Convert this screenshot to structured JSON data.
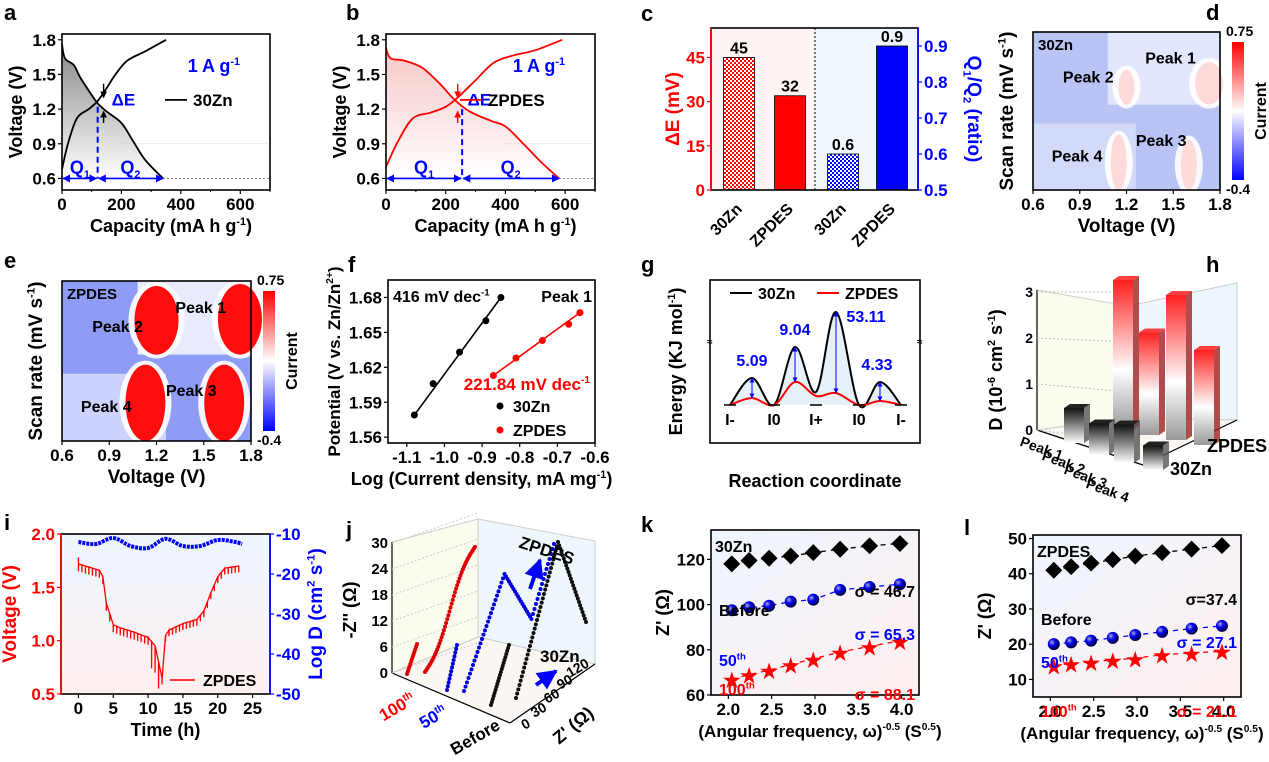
{
  "colors": {
    "red": "#ff0000",
    "blue": "#0000ff",
    "black": "#000000"
  },
  "chart_data": [
    {
      "panel": "a",
      "type": "line",
      "xlabel": "Capacity  (mA h g-1)",
      "ylabel": "Voltage  (V)",
      "xlim": [
        0,
        700
      ],
      "ylim": [
        0.5,
        1.85
      ],
      "xticks": [
        "0",
        "200",
        "400",
        "600"
      ],
      "yticks": [
        "0.6",
        "0.9",
        "1.2",
        "1.5",
        "1.8"
      ],
      "legend": "30Zn",
      "rate_label": "1 A g-1",
      "delta_label": "ΔE",
      "q1_label": "Q1",
      "q2_label": "Q2",
      "series": [
        {
          "name": "30Zn discharge",
          "x": [
            0,
            10,
            40,
            60,
            90,
            120,
            150,
            200,
            240,
            280,
            340
          ],
          "y": [
            1.76,
            1.64,
            1.58,
            1.48,
            1.36,
            1.25,
            1.18,
            1.08,
            0.92,
            0.76,
            0.6
          ]
        },
        {
          "name": "30Zn charge",
          "x": [
            0,
            20,
            50,
            90,
            120,
            150,
            180,
            220,
            280,
            350
          ],
          "y": [
            0.68,
            0.9,
            1.12,
            1.2,
            1.27,
            1.38,
            1.5,
            1.62,
            1.7,
            1.8
          ]
        }
      ],
      "q1_capacity": 120,
      "q2_capacity": 340
    },
    {
      "panel": "b",
      "type": "line",
      "xlabel": "Capacity  (mA h g-1)",
      "ylabel": "Voltage  (V)",
      "xlim": [
        0,
        700
      ],
      "ylim": [
        0.5,
        1.85
      ],
      "xticks": [
        "0",
        "200",
        "400",
        "600"
      ],
      "yticks": [
        "0.6",
        "0.9",
        "1.2",
        "1.5",
        "1.8"
      ],
      "legend": "ZPDES",
      "rate_label": "1 A g-1",
      "delta_label": "ΔE",
      "q1_label": "Q1",
      "q2_label": "Q2",
      "series": [
        {
          "name": "ZPDES discharge",
          "x": [
            0,
            15,
            60,
            120,
            180,
            230,
            280,
            350,
            400,
            460,
            520,
            580
          ],
          "y": [
            1.73,
            1.64,
            1.62,
            1.56,
            1.42,
            1.28,
            1.18,
            1.1,
            1.05,
            0.9,
            0.74,
            0.6
          ]
        },
        {
          "name": "ZPDES charge",
          "x": [
            0,
            40,
            90,
            150,
            200,
            240,
            300,
            360,
            420,
            500,
            590
          ],
          "y": [
            0.7,
            0.92,
            1.12,
            1.17,
            1.22,
            1.3,
            1.45,
            1.6,
            1.66,
            1.71,
            1.8
          ]
        }
      ],
      "q1_capacity": 255,
      "q2_capacity": 580
    },
    {
      "panel": "c",
      "type": "bar",
      "categories": [
        "30Zn",
        "ZPDES",
        "30Zn",
        "ZPDES"
      ],
      "ylabel": "ΔE (mV)",
      "y2label": "Q1/Q2 (ratio)",
      "ylim": [
        0,
        55
      ],
      "y2lim": [
        0.5,
        0.95
      ],
      "yticks": [
        "0",
        "15",
        "30",
        "45"
      ],
      "y2ticks": [
        "0.5",
        "0.6",
        "0.7",
        "0.8",
        "0.9"
      ],
      "series": [
        {
          "name": "ΔE",
          "axis": "left",
          "values": [
            45,
            32
          ],
          "labels": [
            "45",
            "32"
          ]
        },
        {
          "name": "Q1/Q2",
          "axis": "right",
          "values": [
            0.6,
            0.9
          ],
          "labels": [
            "0.6",
            "0.9"
          ]
        }
      ]
    },
    {
      "panel": "d",
      "type": "heatmap",
      "xlabel": "Voltage (V)",
      "ylabel": "Scan rate (mV s-1)",
      "xticks": [
        "0.6",
        "0.9",
        "1.2",
        "1.5",
        "1.8"
      ],
      "colorbar_label": "Current",
      "colorbar_range": [
        "0.75",
        "-0.4"
      ],
      "sample": "30Zn",
      "annotations": [
        "Peak 1",
        "Peak 2",
        "Peak 3",
        "Peak 4"
      ]
    },
    {
      "panel": "e",
      "type": "heatmap",
      "xlabel": "Voltage (V)",
      "ylabel": "Scan rate (mV s-1)",
      "xticks": [
        "0.6",
        "0.9",
        "1.2",
        "1.5",
        "1.8"
      ],
      "colorbar_label": "Current",
      "colorbar_range": [
        "0.75",
        "-0.4"
      ],
      "sample": "ZPDES",
      "annotations": [
        "Peak 1",
        "Peak 2",
        "Peak 3",
        "Peak 4"
      ]
    },
    {
      "panel": "f",
      "type": "scatter",
      "xlabel": "Log (Current density, mA mg-1)",
      "ylabel": "Potential (V vs. Zn/Zn2+)",
      "xlim": [
        -1.15,
        -0.6
      ],
      "ylim": [
        1.555,
        1.695
      ],
      "xticks": [
        "-1.1",
        "-1.0",
        "-0.9",
        "-0.8",
        "-0.7",
        "-0.6"
      ],
      "yticks": [
        "1.56",
        "1.59",
        "1.62",
        "1.65",
        "1.68"
      ],
      "title_annotation": "Peak 1",
      "series": [
        {
          "name": "30Zn",
          "slope_label": "416 mV dec-1",
          "x": [
            -1.08,
            -1.03,
            -0.96,
            -0.89,
            -0.85
          ],
          "y": [
            1.579,
            1.606,
            1.633,
            1.66,
            1.68
          ]
        },
        {
          "name": "ZPDES",
          "slope_label": "221.84 mV dec-1",
          "x": [
            -0.87,
            -0.81,
            -0.74,
            -0.67,
            -0.64
          ],
          "y": [
            1.613,
            1.628,
            1.643,
            1.657,
            1.667
          ]
        }
      ]
    },
    {
      "panel": "g",
      "type": "line",
      "xlabel": "Reaction coordinate",
      "ylabel": "Energy (KJ mol-1)",
      "states": [
        "I-",
        "I0",
        "I+",
        "I0",
        "I-"
      ],
      "barriers": [
        "5.09",
        "9.04",
        "53.11",
        "4.33"
      ],
      "series": [
        {
          "name": "30Zn"
        },
        {
          "name": "ZPDES"
        }
      ]
    },
    {
      "panel": "h",
      "type": "bar",
      "subtype": "3d",
      "ylabel": "D (10-6 cm2 s-1)",
      "yticks": [
        "0",
        "1",
        "2",
        "3"
      ],
      "categories": [
        "Peak 1",
        "Peak 2",
        "Peak 3",
        "Peak 4"
      ],
      "series": [
        {
          "name": "30Zn",
          "values": [
            0.5,
            0.45,
            0.55,
            0.35
          ]
        },
        {
          "name": "ZPDES",
          "values": [
            3.0,
            2.05,
            2.9,
            1.9
          ]
        }
      ]
    },
    {
      "panel": "i",
      "type": "line",
      "xlabel": "Time (h)",
      "ylabel": "Voltage (V)",
      "y2label": "Log D (cm2 s-1)",
      "xlim": [
        -2.5,
        27.5
      ],
      "ylim": [
        0.5,
        2.0
      ],
      "y2lim": [
        -50,
        -10
      ],
      "xticks": [
        "0",
        "5",
        "10",
        "15",
        "20",
        "25"
      ],
      "yticks": [
        "0.5",
        "1.0",
        "1.5",
        "2.0"
      ],
      "y2ticks": [
        "-50",
        "-40",
        "-30",
        "-20",
        "-10"
      ],
      "legend": "ZPDES",
      "series": [
        {
          "name": "Voltage",
          "x": [
            0,
            1,
            2,
            3,
            3.5,
            4,
            5,
            6,
            8,
            10,
            11,
            12,
            12.5,
            13,
            15,
            17,
            18,
            19,
            20,
            21,
            23
          ],
          "y": [
            1.72,
            1.7,
            1.68,
            1.66,
            1.6,
            1.35,
            1.15,
            1.12,
            1.08,
            1.03,
            0.95,
            0.65,
            1.05,
            1.1,
            1.16,
            1.2,
            1.28,
            1.45,
            1.6,
            1.68,
            1.7
          ]
        },
        {
          "name": "Log D",
          "x": [
            0,
            2.5,
            5,
            7.5,
            10,
            12.5,
            15,
            17.5,
            20,
            22.5,
            23.5
          ],
          "y": [
            -12,
            -12.5,
            -11,
            -13,
            -13.5,
            -11.2,
            -13,
            -13,
            -11.5,
            -12,
            -12.5
          ]
        }
      ]
    },
    {
      "panel": "j",
      "type": "line",
      "subtype": "3d",
      "ylabel": "-Z'' (Ω)",
      "xlabel": "Z' (Ω)",
      "yticks": [
        "0",
        "6",
        "12",
        "18",
        "24",
        "30"
      ],
      "xticks": [
        "0",
        "30",
        "60",
        "90",
        "120"
      ],
      "categories": [
        "100th",
        "50th",
        "Before"
      ],
      "labels": [
        "ZPDES",
        "30Zn"
      ]
    },
    {
      "panel": "k",
      "type": "scatter",
      "sample": "30Zn",
      "xlabel": "(Angular frequency, ω)-0.5 (S0.5)",
      "ylabel": "Z' (Ω)",
      "xlim": [
        1.8,
        4.2
      ],
      "ylim": [
        60,
        133
      ],
      "xticks": [
        "2.0",
        "2.5",
        "3.0",
        "3.5",
        "4.0"
      ],
      "yticks": [
        "60",
        "80",
        "100",
        "120"
      ],
      "series": [
        {
          "name": "Before",
          "sigma": "σ = 46.7",
          "x": [
            2.04,
            2.24,
            2.47,
            2.72,
            2.98,
            3.29,
            3.63,
            3.98
          ],
          "y": [
            118,
            119.5,
            120.5,
            121.5,
            123,
            124.5,
            126,
            127
          ]
        },
        {
          "name": "50th",
          "sigma": "σ = 65.3",
          "x": [
            2.04,
            2.24,
            2.47,
            2.72,
            2.98,
            3.29,
            3.63,
            3.98
          ],
          "y": [
            97.5,
            98.8,
            99.5,
            101.3,
            102.2,
            106.5,
            107.8,
            109
          ]
        },
        {
          "name": "100th",
          "sigma": "σ = 88.1",
          "x": [
            2.04,
            2.24,
            2.47,
            2.72,
            2.98,
            3.29,
            3.63,
            3.98
          ],
          "y": [
            67,
            69,
            71,
            73.5,
            76,
            79,
            81.5,
            84
          ]
        }
      ]
    },
    {
      "panel": "l",
      "type": "scatter",
      "sample": "ZPDES",
      "xlabel": "(Angular frequency, ω)-0.5 (S0.5)",
      "ylabel": "Z' (Ω)",
      "xlim": [
        1.8,
        4.2
      ],
      "ylim": [
        5,
        51
      ],
      "xticks": [
        "2.0",
        "2.5",
        "3.0",
        "3.5",
        "4.0"
      ],
      "yticks": [
        "10",
        "20",
        "30",
        "40",
        "50"
      ],
      "series": [
        {
          "name": "Before",
          "sigma": "σ=37.4",
          "x": [
            2.04,
            2.24,
            2.47,
            2.72,
            2.98,
            3.29,
            3.63,
            3.98
          ],
          "y": [
            41,
            42,
            43,
            44,
            45,
            46,
            47,
            48
          ]
        },
        {
          "name": "50th",
          "sigma": "σ = 27.1",
          "x": [
            2.04,
            2.24,
            2.47,
            2.72,
            2.98,
            3.29,
            3.63,
            3.98
          ],
          "y": [
            20,
            20.5,
            21,
            21.8,
            22.6,
            23.5,
            24.4,
            25.2
          ]
        },
        {
          "name": "100th",
          "sigma": "σ = 21.1",
          "x": [
            2.04,
            2.24,
            2.47,
            2.72,
            2.98,
            3.29,
            3.63,
            3.98
          ],
          "y": [
            14,
            14.5,
            15,
            15.5,
            16,
            17,
            17.5,
            18
          ]
        }
      ]
    }
  ]
}
